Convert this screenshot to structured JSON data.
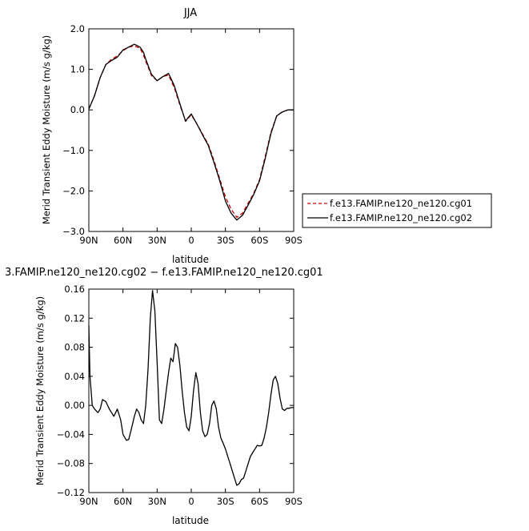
{
  "chart_data": [
    {
      "type": "line",
      "title": "JJA",
      "xlabel": "latitude",
      "ylabel": "Merid Transient Eddy Moisture (m/s g/kg)",
      "x_tick_labels": [
        "90N",
        "60N",
        "30N",
        "0",
        "30S",
        "60S",
        "90S"
      ],
      "x_ticks": [
        90,
        60,
        30,
        0,
        -30,
        -60,
        -90
      ],
      "y_ticks": [
        2.0,
        1.0,
        0.0,
        -1.0,
        -2.0,
        -3.0
      ],
      "y_tick_labels": [
        "2.0",
        "1.0",
        "0.0",
        "−1.0",
        "−2.0",
        "−3.0"
      ],
      "xlim": [
        90,
        -90
      ],
      "ylim": [
        -3.0,
        2.0
      ],
      "legend_position": "right",
      "series": [
        {
          "name": "f.e13.FAMIP.ne120_ne120.cg01",
          "color": "#cc0000",
          "dash": "dashed",
          "x": [
            90,
            85,
            80,
            75,
            70,
            65,
            60,
            55,
            50,
            45,
            42,
            40,
            35,
            30,
            25,
            20,
            15,
            10,
            5,
            3,
            0,
            -5,
            -10,
            -15,
            -20,
            -25,
            -30,
            -35,
            -40,
            -45,
            -50,
            -55,
            -60,
            -65,
            -70,
            -75,
            -80,
            -85,
            -90
          ],
          "values": [
            0.02,
            0.35,
            0.8,
            1.12,
            1.25,
            1.33,
            1.46,
            1.55,
            1.58,
            1.52,
            1.35,
            1.2,
            0.85,
            0.72,
            0.82,
            0.86,
            0.55,
            0.12,
            -0.28,
            -0.22,
            -0.12,
            -0.35,
            -0.6,
            -0.85,
            -1.25,
            -1.7,
            -2.15,
            -2.45,
            -2.65,
            -2.55,
            -2.3,
            -2.05,
            -1.72,
            -1.15,
            -0.55,
            -0.15,
            -0.05,
            0.0,
            0.0
          ]
        },
        {
          "name": "f.e13.FAMIP.ne120_ne120.cg02",
          "color": "#000000",
          "dash": "solid",
          "x": [
            90,
            85,
            80,
            75,
            70,
            65,
            60,
            55,
            50,
            45,
            42,
            40,
            35,
            30,
            25,
            20,
            15,
            10,
            5,
            3,
            0,
            -5,
            -10,
            -15,
            -20,
            -25,
            -30,
            -35,
            -40,
            -45,
            -50,
            -55,
            -60,
            -65,
            -70,
            -75,
            -80,
            -85,
            -90
          ],
          "values": [
            0.02,
            0.35,
            0.8,
            1.12,
            1.22,
            1.3,
            1.48,
            1.55,
            1.62,
            1.55,
            1.42,
            1.25,
            0.88,
            0.72,
            0.82,
            0.9,
            0.6,
            0.15,
            -0.28,
            -0.2,
            -0.1,
            -0.35,
            -0.62,
            -0.88,
            -1.3,
            -1.75,
            -2.25,
            -2.55,
            -2.72,
            -2.6,
            -2.35,
            -2.08,
            -1.75,
            -1.2,
            -0.58,
            -0.15,
            -0.05,
            0.0,
            0.0
          ]
        }
      ]
    },
    {
      "type": "line",
      "title": "3.FAMIP.ne120_ne120.cg02 − f.e13.FAMIP.ne120_ne120.cg01",
      "xlabel": "latitude",
      "ylabel": "Merid Transient Eddy Moisture (m/s g/kg)",
      "x_tick_labels": [
        "90N",
        "60N",
        "30N",
        "0",
        "30S",
        "60S",
        "90S"
      ],
      "x_ticks": [
        90,
        60,
        30,
        0,
        -30,
        -60,
        -90
      ],
      "y_ticks": [
        0.16,
        0.12,
        0.08,
        0.04,
        0.0,
        -0.04,
        -0.08,
        -0.12
      ],
      "y_tick_labels": [
        "0.16",
        "0.12",
        "0.08",
        "0.04",
        "0.00",
        "−0.04",
        "−0.08",
        "−0.12"
      ],
      "xlim": [
        90,
        -90
      ],
      "ylim": [
        -0.12,
        0.16
      ],
      "series": [
        {
          "name": "",
          "color": "#000000",
          "dash": "solid",
          "x": [
            90,
            89,
            87,
            85,
            82,
            80,
            78,
            75,
            72,
            70,
            68,
            65,
            62,
            60,
            57,
            55,
            53,
            50,
            48,
            46,
            44,
            42,
            40,
            38,
            36,
            34,
            32,
            30,
            28,
            26,
            24,
            22,
            20,
            18,
            16,
            14,
            12,
            10,
            8,
            6,
            4,
            2,
            0,
            -2,
            -4,
            -6,
            -8,
            -10,
            -12,
            -14,
            -16,
            -18,
            -20,
            -22,
            -24,
            -26,
            -28,
            -30,
            -32,
            -34,
            -36,
            -38,
            -40,
            -42,
            -44,
            -46,
            -48,
            -50,
            -52,
            -54,
            -56,
            -58,
            -60,
            -62,
            -64,
            -66,
            -68,
            -70,
            -72,
            -74,
            -76,
            -78,
            -80,
            -82,
            -84,
            -86,
            -88,
            -90
          ],
          "values": [
            0.11,
            0.04,
            0.0,
            -0.005,
            -0.01,
            -0.005,
            0.008,
            0.005,
            -0.005,
            -0.01,
            -0.015,
            -0.005,
            -0.02,
            -0.04,
            -0.048,
            -0.047,
            -0.035,
            -0.015,
            -0.005,
            -0.01,
            -0.02,
            -0.025,
            0.0,
            0.05,
            0.12,
            0.158,
            0.13,
            0.06,
            -0.02,
            -0.025,
            -0.005,
            0.02,
            0.045,
            0.065,
            0.06,
            0.085,
            0.08,
            0.055,
            0.02,
            -0.01,
            -0.03,
            -0.035,
            -0.015,
            0.02,
            0.045,
            0.03,
            -0.01,
            -0.035,
            -0.043,
            -0.04,
            -0.025,
            0.0,
            0.006,
            -0.005,
            -0.03,
            -0.045,
            -0.052,
            -0.06,
            -0.07,
            -0.08,
            -0.09,
            -0.1,
            -0.11,
            -0.108,
            -0.102,
            -0.1,
            -0.09,
            -0.08,
            -0.07,
            -0.065,
            -0.06,
            -0.055,
            -0.056,
            -0.055,
            -0.045,
            -0.03,
            -0.01,
            0.015,
            0.035,
            0.04,
            0.03,
            0.01,
            -0.005,
            -0.007,
            -0.004,
            -0.004,
            -0.003,
            -0.003
          ]
        }
      ]
    }
  ]
}
